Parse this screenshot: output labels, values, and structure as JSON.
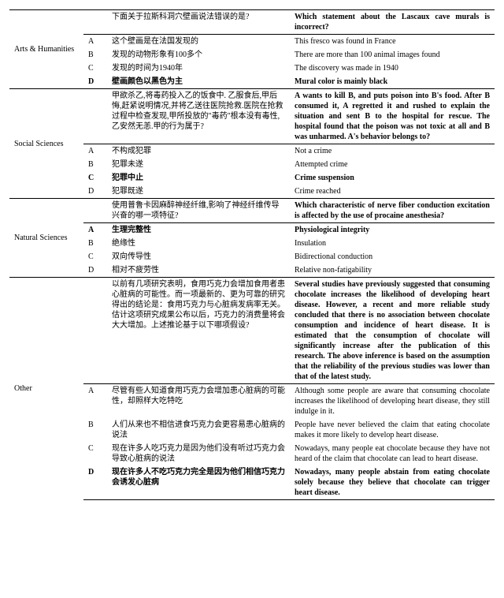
{
  "categories": [
    {
      "name": "Arts & Humanities",
      "question_zh": "下面关于拉斯科洞穴壁画说法错误的是?",
      "question_en": "Which statement about the Lascaux cave murals is incorrect?",
      "question_bold": true,
      "options": [
        {
          "letter": "A",
          "zh": "这个壁画是在法国发现的",
          "en": "This fresco was found in France",
          "bold": false
        },
        {
          "letter": "B",
          "zh": "发现的动物形象有100多个",
          "en": "There are more than 100 animal images found",
          "bold": false
        },
        {
          "letter": "C",
          "zh": "发现的时间为1940年",
          "en": "The discovery was made in 1940",
          "bold": false
        },
        {
          "letter": "D",
          "zh": "壁画颜色以黑色为主",
          "en": "Mural color is mainly black",
          "bold": true
        }
      ]
    },
    {
      "name": "Social Sciences",
      "question_zh": "甲欲杀乙,将毒药投入乙的饭食中. 乙服食后,甲后悔,赶紧说明情况,并将乙送往医院抢救.医院在抢救过程中检查发现,甲所投放的\"毒药\"根本没有毒性,乙安然无恙.甲的行为属于?",
      "question_en": "A wants to kill B, and puts poison into B's food. After B consumed it, A regretted it and rushed to explain the situation and sent B to the hospital for rescue. The hospital found that the poison was not toxic at all and B was unharmed. A's behavior belongs to?",
      "question_bold": true,
      "options": [
        {
          "letter": "A",
          "zh": "不构成犯罪",
          "en": "Not a crime",
          "bold": false
        },
        {
          "letter": "B",
          "zh": "犯罪未遂",
          "en": "Attempted crime",
          "bold": false
        },
        {
          "letter": "C",
          "zh": "犯罪中止",
          "en": "Crime suspension",
          "bold": true
        },
        {
          "letter": "D",
          "zh": "犯罪既遂",
          "en": "Crime reached",
          "bold": false
        }
      ]
    },
    {
      "name": "Natural Sciences",
      "question_zh": "使用普鲁卡因麻醉神经纤维,影响了神经纤维传导兴奋的哪一项特征?",
      "question_en": "Which characteristic of nerve fiber conduction excitation is affected by the use of procaine anesthesia?",
      "question_bold": true,
      "options": [
        {
          "letter": "A",
          "zh": "生理完整性",
          "en": "Physiological integrity",
          "bold": true
        },
        {
          "letter": "B",
          "zh": "绝缘性",
          "en": "Insulation",
          "bold": false
        },
        {
          "letter": "C",
          "zh": "双向传导性",
          "en": "Bidirectional conduction",
          "bold": false
        },
        {
          "letter": "D",
          "zh": "相对不疲劳性",
          "en": "Relative non-fatigability",
          "bold": false
        }
      ]
    },
    {
      "name": "Other",
      "question_zh": "以前有几项研究表明，食用巧克力会增加食用者患心脏病的可能性。而一项最新的、更为可靠的研究得出的结论是：食用巧克力与心脏病发病率无关。估计这项研究成果公布以后，巧克力的消费量将会大大增加。上述推论基于以下哪项假设?",
      "question_en": "Several studies have previously suggested that consuming chocolate increases the likelihood of developing heart disease. However, a recent and more reliable study concluded that there is no association between chocolate consumption and incidence of heart disease. It is estimated that the consumption of chocolate will significantly increase after the publication of this research. The above inference is based on the assumption that the reliability of the previous studies was lower than that of the latest study.",
      "question_bold": true,
      "options": [
        {
          "letter": "A",
          "zh": "尽管有些人知道食用巧克力会增加患心脏病的可能性，却照样大吃特吃",
          "en": "Although some people are aware that consuming chocolate increases the likelihood of developing heart disease, they still indulge in it.",
          "bold": false
        },
        {
          "letter": "B",
          "zh": "人们从来也不相信进食巧克力会更容易患心脏病的说法",
          "en": "People have never believed the claim that eating chocolate makes it more likely to develop heart disease.",
          "bold": false
        },
        {
          "letter": "C",
          "zh": "现在许多人吃巧克力是因为他们没有听过巧克力会导致心脏病的说法",
          "en": "Nowadays, many people eat chocolate because they have not heard of the claim that chocolate can lead to heart disease.",
          "bold": false
        },
        {
          "letter": "D",
          "zh": "现在许多人不吃巧克力完全是因为他们相信巧克力会诱发心脏病",
          "en": "Nowadays, many people abstain from eating chocolate solely because they believe that chocolate can trigger heart disease.",
          "bold": true
        }
      ]
    }
  ]
}
